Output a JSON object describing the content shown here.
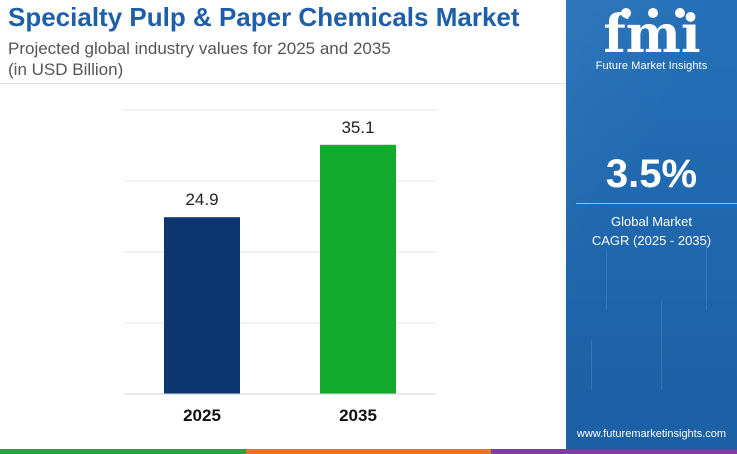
{
  "header": {
    "title": "Specialty Pulp & Paper Chemicals Market",
    "subtitle_line1": "Projected global industry values for 2025 and 2035",
    "subtitle_line2": "(in USD Billion)"
  },
  "chart_data": {
    "type": "bar",
    "categories": [
      "2025",
      "2035"
    ],
    "values": [
      24.9,
      35.1
    ],
    "colors": [
      "#0c3670",
      "#13ab2c"
    ],
    "ylim": [
      0,
      40
    ],
    "grid": true,
    "title": "",
    "xlabel": "",
    "ylabel": ""
  },
  "sidebar": {
    "logo_text": "fmi",
    "logo_caption": "Future Market Insights",
    "cagr_value": "3.5%",
    "cagr_label_line1": "Global Market",
    "cagr_label_line2": "CAGR (2025 - 2035)",
    "website": "www.futuremarketinsights.com",
    "background_color": "#2068b0"
  },
  "footer": {
    "colors": [
      "#2f9e44",
      "#e8742a",
      "#7a3fa0"
    ]
  }
}
